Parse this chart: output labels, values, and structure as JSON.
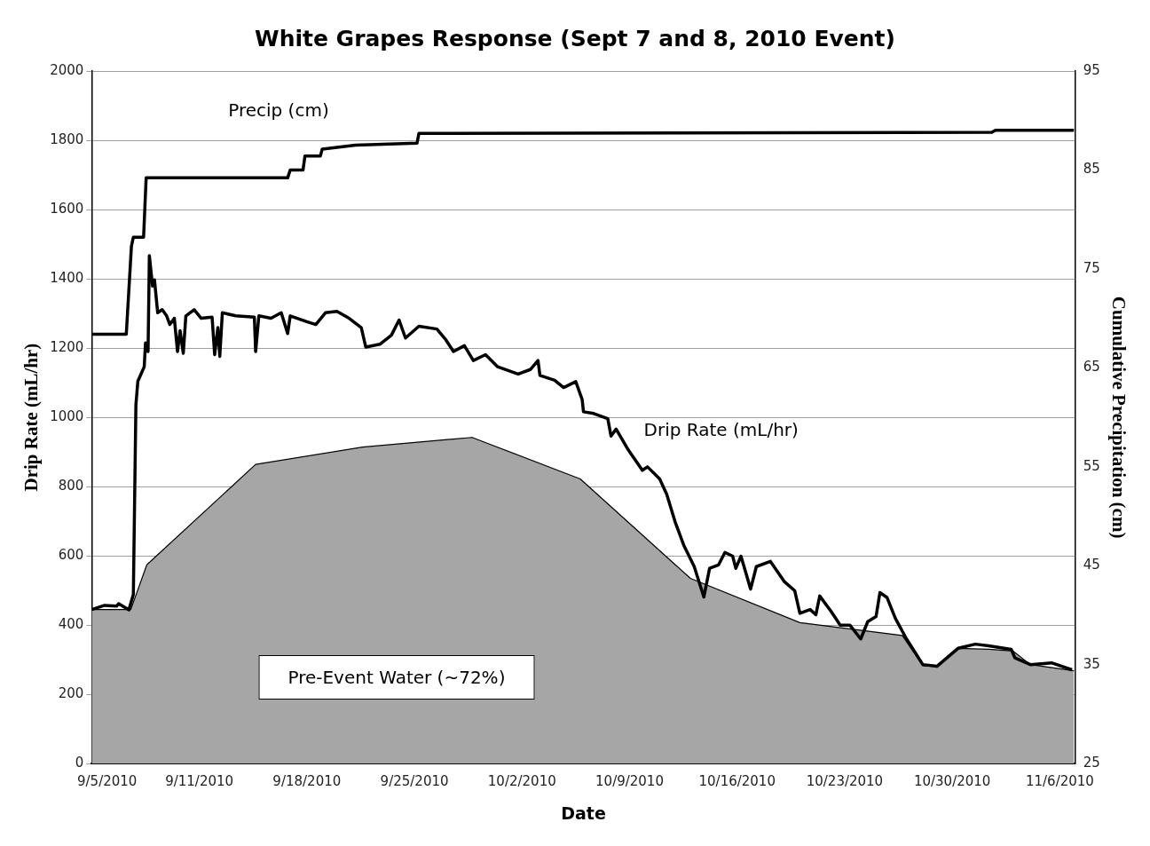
{
  "chart_data": {
    "type": "line",
    "title": "White Grapes Response (Sept 7 and 8, 2010 Event)",
    "xlabel": "Date",
    "ylabel": "Drip Rate (mL/hr)",
    "y2label": "Cumulative Precipitation (cm)",
    "xlim": [
      "2010-09-04",
      "2010-11-07"
    ],
    "xticks": [
      {
        "value": "2010-09-05",
        "label": "9/5/2010"
      },
      {
        "value": "2010-09-11",
        "label": "9/11/2010"
      },
      {
        "value": "2010-09-18",
        "label": "9/18/2010"
      },
      {
        "value": "2010-09-25",
        "label": "9/25/2010"
      },
      {
        "value": "2010-10-02",
        "label": "10/2/2010"
      },
      {
        "value": "2010-10-09",
        "label": "10/9/2010"
      },
      {
        "value": "2010-10-16",
        "label": "10/16/2010"
      },
      {
        "value": "2010-10-23",
        "label": "10/23/2010"
      },
      {
        "value": "2010-10-30",
        "label": "10/30/2010"
      },
      {
        "value": "2010-11-06",
        "label": "11/6/2010"
      }
    ],
    "ylim": [
      0,
      2000
    ],
    "yticks": [
      0,
      200,
      400,
      600,
      800,
      1000,
      1200,
      1400,
      1600,
      1800,
      2000
    ],
    "y2lim": [
      25,
      95
    ],
    "y2ticks": [
      25,
      35,
      45,
      55,
      65,
      75,
      85,
      95
    ],
    "grid": "y",
    "legend": false,
    "marker": "none",
    "series": [
      {
        "name": "Pre-Event Water (~72%)",
        "type": "area",
        "color": "#a6a6a6",
        "x": [
          "2010-09-04T00:00",
          "2010-09-06T13:00",
          "2010-09-07T14:00",
          "2010-09-14T16:00",
          "2010-09-21T15:00",
          "2010-09-28T18:00",
          "2010-10-05T19:00",
          "2010-10-12T23:00",
          "2010-10-20T02:00",
          "2010-10-26T18:00",
          "2010-10-28T02:00",
          "2010-10-29T00:00",
          "2010-10-30T09:00",
          "2010-11-01T09:00",
          "2010-11-02T23:00",
          "2010-11-04T02:00",
          "2010-11-06T22:00"
        ],
        "values": [
          445,
          445,
          574,
          864,
          914,
          942,
          822,
          535,
          407,
          370,
          283,
          280,
          333,
          330,
          325,
          286,
          268
        ]
      },
      {
        "name": "Drip Rate (mL/hr)",
        "type": "line",
        "color": "#000000",
        "x": [
          "2010-09-04T00:00",
          "2010-09-04T20:00",
          "2010-09-05T15:00",
          "2010-09-05T18:00",
          "2010-09-06T10:00",
          "2010-09-06T17:00",
          "2010-09-06T21:00",
          "2010-09-07T00:00",
          "2010-09-07T10:00",
          "2010-09-07T12:00",
          "2010-09-07T16:00",
          "2010-09-07T18:00",
          "2010-09-07T23:00",
          "2010-09-08T02:00",
          "2010-09-08T07:00",
          "2010-09-08T14:00",
          "2010-09-08T21:00",
          "2010-09-09T02:00",
          "2010-09-09T09:00",
          "2010-09-09T14:00",
          "2010-09-09T18:00",
          "2010-09-09T23:00",
          "2010-09-10T03:00",
          "2010-09-10T16:00",
          "2010-09-11T03:00",
          "2010-09-11T20:00",
          "2010-09-12T00:00",
          "2010-09-12T05:00",
          "2010-09-12T08:00",
          "2010-09-12T12:00",
          "2010-09-13T09:00",
          "2010-09-14T14:00",
          "2010-09-14T16:00",
          "2010-09-14T21:00",
          "2010-09-15T16:00",
          "2010-09-16T08:00",
          "2010-09-16T18:00",
          "2010-09-16T22:00",
          "2010-09-18T00:00",
          "2010-09-18T14:00",
          "2010-09-19T05:00",
          "2010-09-19T23:00",
          "2010-09-20T18:00",
          "2010-09-21T13:00",
          "2010-09-21T20:00",
          "2010-09-22T18:00",
          "2010-09-23T12:00",
          "2010-09-24T00:00",
          "2010-09-24T10:00",
          "2010-09-25T07:00",
          "2010-09-26T11:00",
          "2010-09-27T01:00",
          "2010-09-27T13:00",
          "2010-09-28T06:00",
          "2010-09-28T20:00",
          "2010-09-29T15:00",
          "2010-09-30T10:00",
          "2010-10-01T18:00",
          "2010-10-02T13:00",
          "2010-10-03T01:00",
          "2010-10-03T04:00",
          "2010-10-04T03:00",
          "2010-10-04T17:00",
          "2010-10-05T12:00",
          "2010-10-05T22:00",
          "2010-10-06T00:00",
          "2010-10-06T16:00",
          "2010-10-07T14:00",
          "2010-10-07T19:00",
          "2010-10-08T03:00",
          "2010-10-08T22:00",
          "2010-10-09T20:00",
          "2010-10-10T04:00",
          "2010-10-10T23:00",
          "2010-10-11T10:00",
          "2010-10-11T23:00",
          "2010-10-12T13:00",
          "2010-10-13T05:00",
          "2010-10-13T20:00",
          "2010-10-14T05:00",
          "2010-10-14T19:00",
          "2010-10-15T05:00",
          "2010-10-15T17:00",
          "2010-10-15T22:00",
          "2010-10-16T06:00",
          "2010-10-16T21:00",
          "2010-10-17T06:00",
          "2010-10-18T04:00",
          "2010-10-19T02:00",
          "2010-10-19T18:00",
          "2010-10-20T02:00",
          "2010-10-20T18:00",
          "2010-10-21T03:00",
          "2010-10-21T09:00",
          "2010-10-22T03:00",
          "2010-10-22T17:00",
          "2010-10-23T08:00",
          "2010-10-24T01:00",
          "2010-10-24T12:00",
          "2010-10-25T01:00",
          "2010-10-25T07:00",
          "2010-10-25T18:00",
          "2010-10-26T07:00",
          "2010-10-26T23:00",
          "2010-10-28T02:00",
          "2010-10-29T00:00",
          "2010-10-30T09:00",
          "2010-10-31T12:00",
          "2010-11-01T09:00",
          "2010-11-02T20:00",
          "2010-11-03T02:00",
          "2010-11-04T02:00",
          "2010-11-05T11:00",
          "2010-11-06T19:00"
        ],
        "values": [
          445,
          457,
          455,
          462,
          444,
          488,
          1036,
          1104,
          1146,
          1215,
          1190,
          1467,
          1379,
          1397,
          1302,
          1311,
          1293,
          1268,
          1286,
          1190,
          1250,
          1185,
          1293,
          1311,
          1286,
          1289,
          1181,
          1259,
          1176,
          1302,
          1293,
          1289,
          1190,
          1293,
          1286,
          1302,
          1242,
          1293,
          1276,
          1268,
          1302,
          1306,
          1286,
          1259,
          1203,
          1211,
          1237,
          1281,
          1229,
          1263,
          1255,
          1224,
          1190,
          1207,
          1164,
          1181,
          1146,
          1125,
          1138,
          1164,
          1121,
          1107,
          1086,
          1103,
          1051,
          1016,
          1011,
          996,
          946,
          966,
          906,
          847,
          857,
          822,
          778,
          699,
          629,
          569,
          481,
          564,
          574,
          610,
          599,
          564,
          599,
          504,
          569,
          584,
          525,
          499,
          434,
          445,
          430,
          484,
          439,
          400,
          400,
          360,
          410,
          425,
          494,
          480,
          420,
          365,
          286,
          281,
          333,
          345,
          340,
          330,
          305,
          286,
          291,
          271
        ]
      },
      {
        "name": "Precip (cm)",
        "type": "line",
        "axis": "y2",
        "color": "#000000",
        "x": [
          "2010-09-04T00:00",
          "2010-09-06T06:00",
          "2010-09-06T14:00",
          "2010-09-06T17:00",
          "2010-09-07T09:00",
          "2010-09-07T13:00",
          "2010-09-16T18:00",
          "2010-09-16T22:00",
          "2010-09-17T18:00",
          "2010-09-17T21:00",
          "2010-09-18T21:00",
          "2010-09-19T00:00",
          "2010-09-21T04:00",
          "2010-09-25T04:00",
          "2010-09-25T07:00",
          "2010-11-01T14:00",
          "2010-11-01T19:00",
          "2010-11-06T22:00"
        ],
        "values": [
          68.4,
          68.4,
          77.3,
          78.2,
          78.2,
          84.2,
          84.2,
          85.0,
          85.0,
          86.4,
          86.4,
          87.1,
          87.5,
          87.7,
          88.7,
          88.8,
          89.0,
          89.0
        ]
      }
    ]
  }
}
